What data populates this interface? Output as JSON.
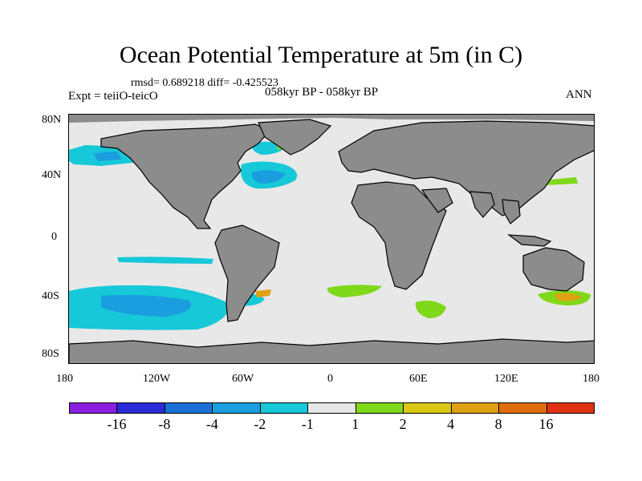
{
  "title": "Ocean Potential Temperature at 5m (in C)",
  "stats": "rmsd= 0.689218 diff= -0.425523",
  "experiment": "Expt = teiiO-teicO",
  "period": "058kyr BP - 058kyr BP",
  "season": "ANN",
  "y_axis_labels": [
    "80N",
    "40N",
    "0",
    "40S",
    "80S"
  ],
  "x_axis_labels": [
    "180",
    "120W",
    "60W",
    "0",
    "60E",
    "120E",
    "180"
  ],
  "colorbar": {
    "colors": [
      "#8a1fe0",
      "#2a2ad8",
      "#1a72d8",
      "#1a9ee0",
      "#16c8d8",
      "#e6e6e6",
      "#80d81a",
      "#d8c814",
      "#e0a014",
      "#e06c0c",
      "#e03212"
    ],
    "labels": [
      "-16",
      "-8",
      "-4",
      "-2",
      "-1",
      "1",
      "2",
      "4",
      "8",
      "16"
    ]
  },
  "colors": {
    "land": "#8c8c8c",
    "ocean": "#e8e8e8",
    "coast": "#000000"
  }
}
